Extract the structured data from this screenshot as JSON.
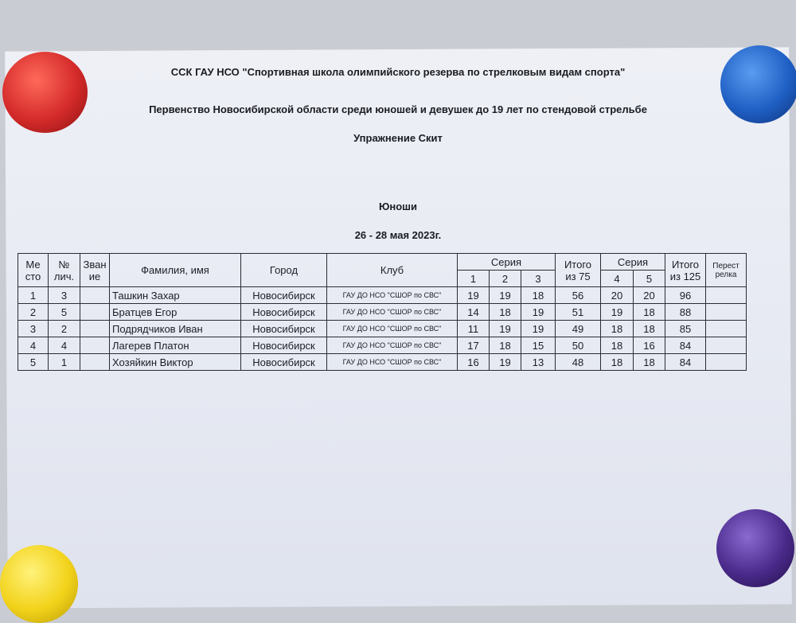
{
  "header": {
    "organization": "ССК ГАУ НСО \"Спортивная школа олимпийского резерва по стрелковым видам спорта\"",
    "competition": "Первенство Новосибирской области среди юношей и девушек до 19 лет по стендовой стрельбе",
    "exercise": "Упражнение Скит",
    "group": "Юноши",
    "dates": "26 - 28 мая  2023г."
  },
  "table": {
    "headers": {
      "place_1": "Ме",
      "place_2": "сто",
      "number_1": "№",
      "number_2": "лич.",
      "rank_1": "Зван",
      "rank_2": "ие",
      "name": "Фамилия, имя",
      "city": "Город",
      "club": "Клуб",
      "series_a": "Серия",
      "s1": "1",
      "s2": "2",
      "s3": "3",
      "total75_1": "Итого",
      "total75_2": "из 75",
      "series_b": "Серия",
      "s4": "4",
      "s5": "5",
      "total125_1": "Итого",
      "total125_2": "из 125",
      "shootoff_1": "Перест",
      "shootoff_2": "релка"
    },
    "rows": [
      {
        "place": "1",
        "number": "3",
        "rank": "",
        "name": "Ташкин Захар",
        "city": "Новосибирск",
        "club": "ГАУ ДО НСО \"СШОР по СВС\"",
        "s1": "19",
        "s2": "19",
        "s3": "18",
        "total75": "56",
        "s4": "20",
        "s5": "20",
        "total125": "96",
        "shootoff": ""
      },
      {
        "place": "2",
        "number": "5",
        "rank": "",
        "name": "Братцев Егор",
        "city": "Новосибирск",
        "club": "ГАУ ДО НСО \"СШОР по СВС\"",
        "s1": "14",
        "s2": "18",
        "s3": "19",
        "total75": "51",
        "s4": "19",
        "s5": "18",
        "total125": "88",
        "shootoff": ""
      },
      {
        "place": "3",
        "number": "2",
        "rank": "",
        "name": "Подрядчиков Иван",
        "city": "Новосибирск",
        "club": "ГАУ ДО НСО \"СШОР по СВС\"",
        "s1": "11",
        "s2": "19",
        "s3": "19",
        "total75": "49",
        "s4": "18",
        "s5": "18",
        "total125": "85",
        "shootoff": ""
      },
      {
        "place": "4",
        "number": "4",
        "rank": "",
        "name": "Лагерев Платон",
        "city": "Новосибирск",
        "club": "ГАУ ДО НСО \"СШОР по СВС\"",
        "s1": "17",
        "s2": "18",
        "s3": "15",
        "total75": "50",
        "s4": "18",
        "s5": "16",
        "total125": "84",
        "shootoff": ""
      },
      {
        "place": "5",
        "number": "1",
        "rank": "",
        "name": "Хозяйкин Виктор",
        "city": "Новосибирск",
        "club": "ГАУ ДО НСО \"СШОР по СВС\"",
        "s1": "16",
        "s2": "19",
        "s3": "13",
        "total75": "48",
        "s4": "18",
        "s5": "18",
        "total125": "84",
        "shootoff": ""
      }
    ]
  },
  "magnets": {
    "top_left": "#d42a2a",
    "top_right": "#1f5fc4",
    "bottom_left": "#f2d21a",
    "bottom_right": "#4a2a8a"
  }
}
